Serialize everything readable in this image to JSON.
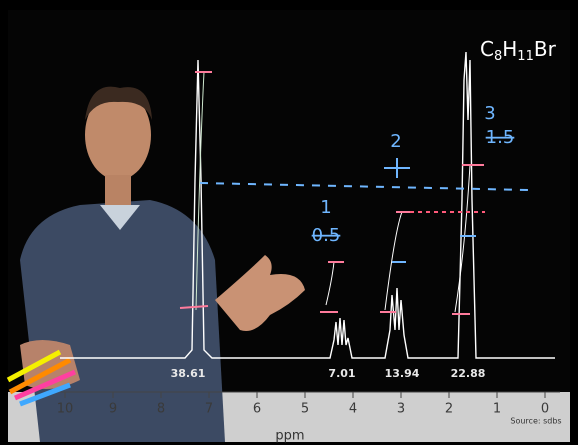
{
  "formula": [
    "C",
    "8",
    "H",
    "11",
    "Br"
  ],
  "integrals": [
    "38.61",
    "7.01",
    "13.94",
    "22.88"
  ],
  "axis": {
    "ticks": [
      "10",
      "9",
      "8",
      "7",
      "6",
      "5",
      "4",
      "3",
      "2",
      "1",
      "0"
    ],
    "label": "ppm"
  },
  "source": "Source: sdbs",
  "annotations": [
    {
      "label": "1",
      "ratio": "0.5"
    },
    {
      "label": "2"
    },
    {
      "label": "3",
      "ratio": "1.5"
    }
  ]
}
